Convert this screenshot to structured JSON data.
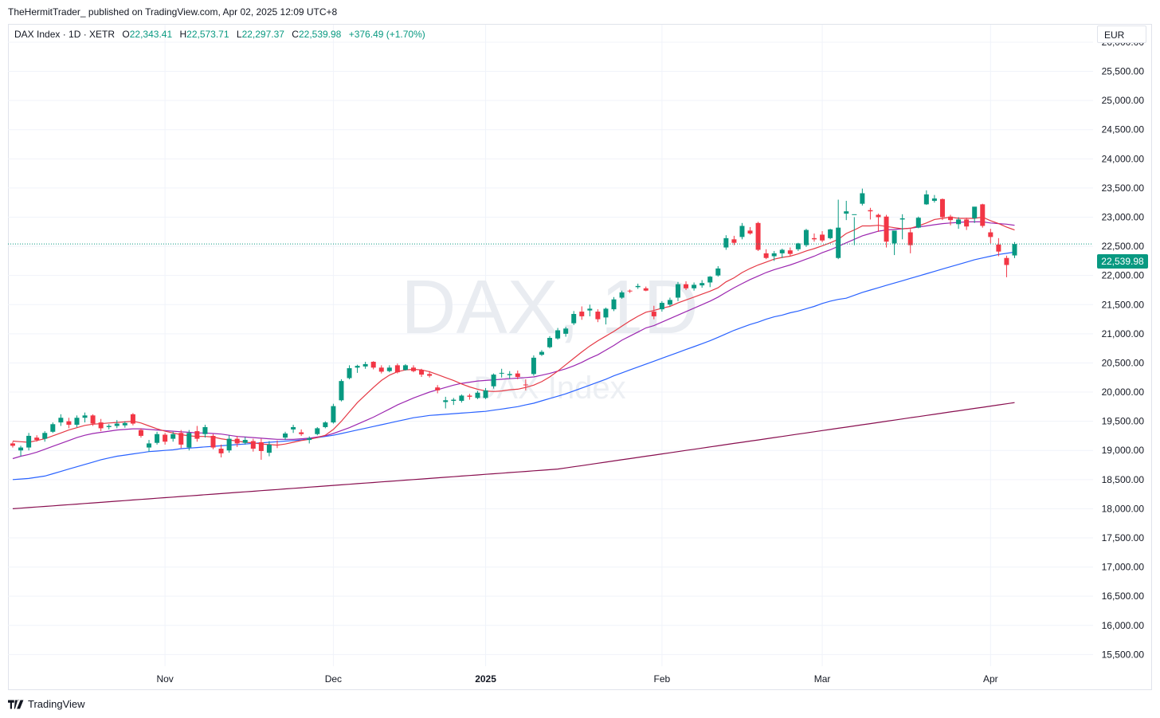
{
  "header": {
    "published": "TheHermitTrader_ published on TradingView.com, Apr 02, 2025 12:09 UTC+8"
  },
  "legend": {
    "symbol": "DAX Index · 1D · XETR",
    "open_label": "O",
    "open": "22,343.41",
    "high_label": "H",
    "high": "22,573.71",
    "low_label": "L",
    "low": "22,297.37",
    "close_label": "C",
    "close": "22,539.98",
    "change": "+376.49 (+1.70%)"
  },
  "currency": "EUR",
  "last_price": "22,539.98",
  "watermark": {
    "big": "DAX, 1D",
    "small": "DAX Index"
  },
  "footer": {
    "brand": "TradingView"
  },
  "colors": {
    "up": "#089981",
    "down": "#f23645",
    "ma_red": "#e53945",
    "ma_purple": "#9c27b0",
    "ma_blue": "#2962ff",
    "ma_maroon": "#880e4f",
    "grid": "#f0f3fa"
  },
  "chart_data": {
    "type": "candlestick",
    "y_ticks": [
      15500,
      16000,
      16500,
      17000,
      17500,
      18000,
      18500,
      19000,
      19500,
      20000,
      20500,
      21000,
      21500,
      22000,
      22500,
      23000,
      23500,
      24000,
      24500,
      25000,
      25500,
      26000
    ],
    "y_tick_labels": [
      "15,500.00",
      "16,000.00",
      "16,500.00",
      "17,000.00",
      "17,500.00",
      "18,000.00",
      "18,500.00",
      "19,000.00",
      "19,500.00",
      "20,000.00",
      "20,500.00",
      "21,000.00",
      "21,500.00",
      "22,000.00",
      "22,500.00",
      "23,000.00",
      "23,500.00",
      "24,000.00",
      "24,500.00",
      "25,000.00",
      "25,500.00",
      "26,000.00"
    ],
    "ylim": [
      15300,
      26300
    ],
    "x_labels": [
      {
        "label": "Nov",
        "index": 19
      },
      {
        "label": "Dec",
        "index": 40
      },
      {
        "label": "2025",
        "index": 59,
        "bold": true
      },
      {
        "label": "Feb",
        "index": 81
      },
      {
        "label": "Mar",
        "index": 101
      },
      {
        "label": "Apr",
        "index": 122
      }
    ],
    "x_range": [
      0,
      133
    ],
    "last_value": 22539.98,
    "candles": [
      [
        19120,
        19150,
        19050,
        19080
      ],
      [
        19000,
        19080,
        18900,
        19050
      ],
      [
        19050,
        19300,
        19000,
        19250
      ],
      [
        19220,
        19260,
        19150,
        19180
      ],
      [
        19200,
        19330,
        19150,
        19300
      ],
      [
        19320,
        19480,
        19300,
        19450
      ],
      [
        19480,
        19620,
        19420,
        19560
      ],
      [
        19500,
        19560,
        19380,
        19440
      ],
      [
        19440,
        19600,
        19400,
        19560
      ],
      [
        19560,
        19650,
        19480,
        19600
      ],
      [
        19600,
        19620,
        19420,
        19460
      ],
      [
        19480,
        19540,
        19330,
        19380
      ],
      [
        19400,
        19450,
        19360,
        19420
      ],
      [
        19420,
        19520,
        19380,
        19460
      ],
      [
        19430,
        19500,
        19390,
        19470
      ],
      [
        19620,
        19640,
        19430,
        19460
      ],
      [
        19350,
        19380,
        19220,
        19250
      ],
      [
        19050,
        19180,
        18980,
        19120
      ],
      [
        19130,
        19320,
        19100,
        19280
      ],
      [
        19270,
        19300,
        19100,
        19150
      ],
      [
        19200,
        19320,
        19150,
        19280
      ],
      [
        19300,
        19350,
        19040,
        19100
      ],
      [
        19050,
        19350,
        19000,
        19300
      ],
      [
        19330,
        19420,
        19150,
        19200
      ],
      [
        19280,
        19440,
        19220,
        19400
      ],
      [
        19250,
        19280,
        19020,
        19050
      ],
      [
        19030,
        19100,
        18880,
        18950
      ],
      [
        19000,
        19260,
        18960,
        19200
      ],
      [
        19200,
        19250,
        19060,
        19120
      ],
      [
        19130,
        19230,
        19100,
        19180
      ],
      [
        19160,
        19200,
        18980,
        19030
      ],
      [
        19140,
        19200,
        18840,
        18990
      ],
      [
        18960,
        19160,
        18900,
        19100
      ],
      [
        19100,
        19170,
        19040,
        19090
      ],
      [
        19220,
        19320,
        19180,
        19290
      ],
      [
        19360,
        19440,
        19300,
        19400
      ],
      [
        19310,
        19360,
        19250,
        19280
      ],
      [
        19180,
        19240,
        19120,
        19210
      ],
      [
        19280,
        19400,
        19260,
        19380
      ],
      [
        19400,
        19500,
        19380,
        19480
      ],
      [
        19480,
        19800,
        19460,
        19760
      ],
      [
        19860,
        20220,
        19840,
        20190
      ],
      [
        20240,
        20460,
        20220,
        20410
      ],
      [
        20420,
        20470,
        20330,
        20450
      ],
      [
        20440,
        20520,
        20400,
        20480
      ],
      [
        20520,
        20530,
        20390,
        20420
      ],
      [
        20420,
        20460,
        20320,
        20350
      ],
      [
        20360,
        20460,
        20340,
        20420
      ],
      [
        20460,
        20490,
        20320,
        20340
      ],
      [
        20380,
        20480,
        20370,
        20460
      ],
      [
        20420,
        20460,
        20340,
        20360
      ],
      [
        20380,
        20400,
        20260,
        20300
      ],
      [
        20310,
        20360,
        20250,
        20280
      ],
      [
        20080,
        20120,
        19980,
        20030
      ],
      [
        19830,
        19920,
        19720,
        19860
      ],
      [
        19850,
        19900,
        19780,
        19870
      ],
      [
        19850,
        19960,
        19820,
        19940
      ],
      [
        19940,
        19970,
        19870,
        19920
      ],
      [
        19900,
        20020,
        19880,
        19990
      ],
      [
        19900,
        20070,
        19880,
        20030
      ],
      [
        20100,
        20320,
        20060,
        20300
      ],
      [
        20320,
        20400,
        20250,
        20330
      ],
      [
        20290,
        20360,
        20230,
        20310
      ],
      [
        20320,
        20370,
        20220,
        20260
      ],
      [
        20130,
        20220,
        20030,
        20120
      ],
      [
        20310,
        20630,
        20280,
        20590
      ],
      [
        20640,
        20720,
        20620,
        20690
      ],
      [
        20770,
        20960,
        20750,
        20930
      ],
      [
        20920,
        21100,
        20900,
        21060
      ],
      [
        21000,
        21120,
        20950,
        21090
      ],
      [
        21180,
        21390,
        21150,
        21340
      ],
      [
        21380,
        21470,
        21240,
        21300
      ],
      [
        21400,
        21500,
        21300,
        21430
      ],
      [
        21380,
        21420,
        21200,
        21250
      ],
      [
        21280,
        21450,
        21160,
        21430
      ],
      [
        21420,
        21630,
        21390,
        21590
      ],
      [
        21620,
        21740,
        21600,
        21710
      ],
      [
        21740,
        21760,
        21700,
        21730
      ],
      [
        21800,
        21860,
        21770,
        21820
      ],
      [
        21780,
        21810,
        21730,
        21740
      ],
      [
        21380,
        21480,
        21250,
        21300
      ],
      [
        21420,
        21560,
        21380,
        21530
      ],
      [
        21500,
        21620,
        21470,
        21580
      ],
      [
        21620,
        21890,
        21560,
        21850
      ],
      [
        21850,
        21900,
        21750,
        21780
      ],
      [
        21780,
        21880,
        21740,
        21840
      ],
      [
        21830,
        21920,
        21790,
        21870
      ],
      [
        21880,
        21990,
        21800,
        21980
      ],
      [
        22000,
        22160,
        21980,
        22120
      ],
      [
        22480,
        22690,
        22440,
        22640
      ],
      [
        22620,
        22680,
        22520,
        22560
      ],
      [
        22660,
        22900,
        22620,
        22850
      ],
      [
        22770,
        22830,
        22700,
        22720
      ],
      [
        22900,
        22920,
        22420,
        22440
      ],
      [
        22380,
        22450,
        22280,
        22300
      ],
      [
        22330,
        22420,
        22250,
        22380
      ],
      [
        22380,
        22460,
        22300,
        22440
      ],
      [
        22430,
        22480,
        22330,
        22370
      ],
      [
        22450,
        22560,
        22420,
        22550
      ],
      [
        22520,
        22800,
        22490,
        22780
      ],
      [
        22640,
        22720,
        22580,
        22620
      ],
      [
        22700,
        22760,
        22570,
        22600
      ],
      [
        22640,
        22800,
        22620,
        22790
      ],
      [
        22300,
        23300,
        22280,
        22820
      ],
      [
        23060,
        23280,
        22950,
        23100
      ],
      [
        23050,
        23000,
        22520,
        23050
      ],
      [
        23230,
        23490,
        23200,
        23410
      ],
      [
        23120,
        23160,
        22960,
        23100
      ],
      [
        23040,
        23060,
        22750,
        23000
      ],
      [
        23010,
        23040,
        22480,
        22580
      ],
      [
        22550,
        22760,
        22350,
        22770
      ],
      [
        22960,
        23050,
        22620,
        22980
      ],
      [
        22740,
        22800,
        22380,
        22520
      ],
      [
        22820,
        23010,
        22810,
        22990
      ],
      [
        23220,
        23460,
        23210,
        23390
      ],
      [
        23280,
        23380,
        23250,
        23320
      ],
      [
        23310,
        23320,
        22950,
        23000
      ],
      [
        23010,
        23040,
        22860,
        22950
      ],
      [
        22880,
        23000,
        22800,
        22960
      ],
      [
        22960,
        22990,
        22780,
        22840
      ],
      [
        22980,
        23160,
        22900,
        23180
      ],
      [
        23220,
        23230,
        22820,
        22850
      ],
      [
        22740,
        22800,
        22550,
        22660
      ],
      [
        22530,
        22640,
        22330,
        22410
      ],
      [
        22300,
        22340,
        21970,
        22180
      ],
      [
        22343.41,
        22573.71,
        22297.37,
        22539.98
      ]
    ],
    "ma_red": [
      19160,
      19150,
      19140,
      19170,
      19200,
      19250,
      19300,
      19350,
      19390,
      19430,
      19450,
      19460,
      19470,
      19480,
      19490,
      19500,
      19470,
      19420,
      19370,
      19330,
      19300,
      19270,
      19250,
      19240,
      19240,
      19230,
      19200,
      19180,
      19160,
      19140,
      19130,
      19110,
      19100,
      19090,
      19110,
      19140,
      19170,
      19190,
      19220,
      19260,
      19360,
      19500,
      19660,
      19820,
      19950,
      20080,
      20200,
      20290,
      20350,
      20380,
      20390,
      20380,
      20350,
      20300,
      20250,
      20200,
      20140,
      20090,
      20050,
      20020,
      20010,
      20020,
      20040,
      20050,
      20080,
      20120,
      20180,
      20260,
      20360,
      20470,
      20580,
      20690,
      20790,
      20880,
      20960,
      21040,
      21130,
      21220,
      21300,
      21370,
      21400,
      21440,
      21470,
      21530,
      21580,
      21630,
      21680,
      21730,
      21790,
      21890,
      21960,
      22050,
      22120,
      22180,
      22230,
      22280,
      22310,
      22330,
      22370,
      22420,
      22460,
      22510,
      22560,
      22620,
      22720,
      22780,
      22850,
      22850,
      22860,
      22840,
      22820,
      22800,
      22810,
      22850,
      22900,
      22960,
      22980,
      23000,
      22980,
      22980,
      22980,
      23000,
      22940,
      22890,
      22830,
      22780
    ],
    "ma_purple": [
      18860,
      18900,
      18930,
      18970,
      19020,
      19070,
      19120,
      19170,
      19220,
      19260,
      19290,
      19310,
      19330,
      19350,
      19360,
      19370,
      19370,
      19360,
      19350,
      19340,
      19330,
      19320,
      19310,
      19300,
      19300,
      19290,
      19280,
      19260,
      19240,
      19230,
      19220,
      19210,
      19200,
      19190,
      19190,
      19190,
      19200,
      19210,
      19230,
      19250,
      19290,
      19340,
      19390,
      19450,
      19510,
      19570,
      19640,
      19710,
      19780,
      19840,
      19900,
      19950,
      20000,
      20040,
      20080,
      20120,
      20150,
      20170,
      20190,
      20200,
      20210,
      20220,
      20230,
      20240,
      20250,
      20260,
      20290,
      20320,
      20360,
      20400,
      20450,
      20510,
      20580,
      20640,
      20720,
      20800,
      20890,
      20960,
      21030,
      21100,
      21140,
      21200,
      21260,
      21320,
      21380,
      21440,
      21500,
      21560,
      21630,
      21710,
      21790,
      21860,
      21930,
      21990,
      22050,
      22100,
      22140,
      22180,
      22230,
      22280,
      22330,
      22390,
      22440,
      22500,
      22560,
      22620,
      22680,
      22720,
      22760,
      22780,
      22790,
      22800,
      22810,
      22830,
      22850,
      22870,
      22890,
      22900,
      22910,
      22920,
      22920,
      22920,
      22900,
      22890,
      22880,
      22860
    ],
    "ma_blue": [
      18500,
      18510,
      18520,
      18540,
      18560,
      18600,
      18640,
      18680,
      18720,
      18760,
      18800,
      18840,
      18870,
      18900,
      18920,
      18940,
      18960,
      18980,
      18990,
      19000,
      19010,
      19030,
      19040,
      19050,
      19060,
      19070,
      19080,
      19090,
      19100,
      19110,
      19120,
      19130,
      19140,
      19150,
      19160,
      19170,
      19180,
      19200,
      19220,
      19240,
      19260,
      19290,
      19320,
      19350,
      19380,
      19410,
      19440,
      19470,
      19500,
      19530,
      19560,
      19580,
      19600,
      19610,
      19620,
      19630,
      19640,
      19650,
      19660,
      19670,
      19690,
      19710,
      19730,
      19750,
      19780,
      19810,
      19850,
      19890,
      19930,
      19970,
      20020,
      20070,
      20120,
      20170,
      20220,
      20280,
      20330,
      20380,
      20430,
      20480,
      20530,
      20580,
      20630,
      20680,
      20730,
      20780,
      20830,
      20880,
      20940,
      21000,
      21060,
      21110,
      21160,
      21200,
      21250,
      21290,
      21320,
      21360,
      21390,
      21430,
      21470,
      21520,
      21560,
      21590,
      21610,
      21660,
      21710,
      21750,
      21790,
      21830,
      21870,
      21910,
      21950,
      21990,
      22030,
      22070,
      22110,
      22150,
      22190,
      22230,
      22270,
      22300,
      22330,
      22360,
      22380,
      22400
    ],
    "ma_maroon": [
      18000,
      18010,
      18020,
      18030,
      18040,
      18050,
      18060,
      18070,
      18080,
      18090,
      18100,
      18110,
      18120,
      18130,
      18140,
      18150,
      18160,
      18170,
      18180,
      18190,
      18200,
      18210,
      18220,
      18230,
      18240,
      18250,
      18260,
      18270,
      18280,
      18290,
      18300,
      18310,
      18320,
      18330,
      18340,
      18350,
      18360,
      18370,
      18380,
      18390,
      18400,
      18410,
      18420,
      18430,
      18440,
      18450,
      18460,
      18470,
      18480,
      18490,
      18500,
      18510,
      18520,
      18530,
      18540,
      18550,
      18560,
      18570,
      18580,
      18590,
      18600,
      18610,
      18620,
      18630,
      18640,
      18650,
      18660,
      18670,
      18680,
      18700,
      18720,
      18740,
      18760,
      18780,
      18800,
      18820,
      18840,
      18860,
      18880,
      18900,
      18920,
      18940,
      18960,
      18980,
      19000,
      19020,
      19040,
      19060,
      19080,
      19100,
      19120,
      19140,
      19160,
      19180,
      19200,
      19220,
      19240,
      19260,
      19280,
      19300,
      19320,
      19340,
      19360,
      19380,
      19400,
      19420,
      19440,
      19460,
      19480,
      19500,
      19520,
      19540,
      19560,
      19580,
      19600,
      19620,
      19640,
      19660,
      19680,
      19700,
      19720,
      19740,
      19760,
      19780,
      19800,
      19820
    ]
  }
}
